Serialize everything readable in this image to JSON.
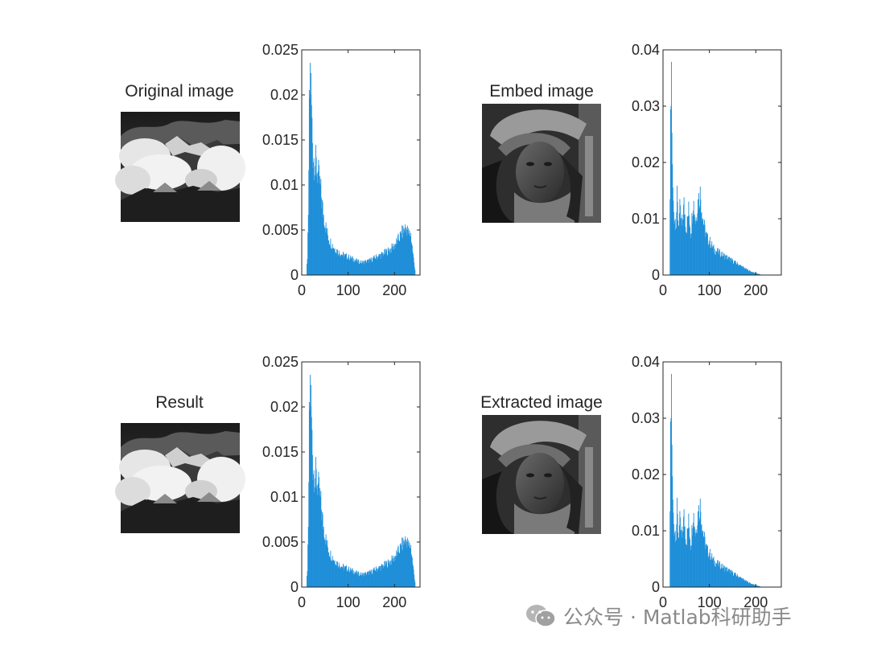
{
  "images": {
    "original": {
      "title": "Original image",
      "icon": "mountain-clouds-grayscale-photo"
    },
    "embed": {
      "title": "Embed image",
      "icon": "woman-with-hat-grayscale-photo"
    },
    "result": {
      "title": "Result",
      "icon": "mountain-clouds-grayscale-photo"
    },
    "extracted": {
      "title": "Extracted image",
      "icon": "woman-with-hat-grayscale-photo"
    }
  },
  "watermark": {
    "text": "公众号 · Matlab科研助手",
    "icon": "wechat-icon"
  },
  "colors": {
    "bar": "#1f8fd8",
    "axis": "#262626"
  },
  "chart_data": [
    {
      "id": "hist-original",
      "type": "bar",
      "title": "",
      "xlabel": "",
      "ylabel": "",
      "xlim": [
        0,
        255
      ],
      "ylim": [
        0,
        0.025
      ],
      "xticks": [
        "0",
        "100",
        "200"
      ],
      "yticks": [
        "0",
        "0.005",
        "0.01",
        "0.015",
        "0.02",
        "0.025"
      ],
      "grid": false,
      "x": [
        10,
        12,
        14,
        16,
        18,
        20,
        22,
        24,
        26,
        28,
        30,
        35,
        40,
        45,
        50,
        55,
        60,
        70,
        80,
        90,
        100,
        110,
        120,
        130,
        140,
        150,
        160,
        170,
        180,
        190,
        200,
        210,
        215,
        220,
        225,
        230,
        235,
        240,
        245
      ],
      "values": [
        0.0002,
        0.002,
        0.006,
        0.0178,
        0.0224,
        0.0205,
        0.0165,
        0.0137,
        0.013,
        0.0126,
        0.0123,
        0.0112,
        0.0097,
        0.0073,
        0.0057,
        0.0046,
        0.0038,
        0.003,
        0.0025,
        0.0022,
        0.002,
        0.0018,
        0.0015,
        0.0014,
        0.0015,
        0.0017,
        0.002,
        0.0022,
        0.0025,
        0.0028,
        0.0033,
        0.0041,
        0.0046,
        0.005,
        0.0053,
        0.0046,
        0.0045,
        0.0022,
        0.0002
      ]
    },
    {
      "id": "hist-embed",
      "type": "bar",
      "title": "",
      "xlabel": "",
      "ylabel": "",
      "xlim": [
        0,
        255
      ],
      "ylim": [
        0,
        0.04
      ],
      "xticks": [
        "0",
        "100",
        "200"
      ],
      "yticks": [
        "0",
        "0.01",
        "0.02",
        "0.03",
        "0.04"
      ],
      "grid": false,
      "x": [
        14,
        16,
        18,
        20,
        22,
        24,
        26,
        28,
        30,
        33,
        36,
        40,
        45,
        50,
        55,
        60,
        65,
        70,
        75,
        80,
        85,
        90,
        95,
        100,
        110,
        120,
        130,
        140,
        150,
        160,
        170,
        180,
        190,
        200,
        210
      ],
      "values": [
        0.002,
        0.0255,
        0.036,
        0.018,
        0.0125,
        0.0105,
        0.01,
        0.0095,
        0.0135,
        0.009,
        0.0115,
        0.0085,
        0.0125,
        0.008,
        0.0115,
        0.0075,
        0.0135,
        0.0095,
        0.013,
        0.0145,
        0.0105,
        0.008,
        0.0065,
        0.006,
        0.0045,
        0.004,
        0.0035,
        0.003,
        0.0025,
        0.002,
        0.0015,
        0.001,
        0.0006,
        0.0003,
        0.0001
      ]
    },
    {
      "id": "hist-result",
      "type": "bar",
      "title": "",
      "xlabel": "",
      "ylabel": "",
      "xlim": [
        0,
        255
      ],
      "ylim": [
        0,
        0.025
      ],
      "xticks": [
        "0",
        "100",
        "200"
      ],
      "yticks": [
        "0",
        "0.005",
        "0.01",
        "0.015",
        "0.02",
        "0.025"
      ],
      "grid": false,
      "x": [
        10,
        12,
        14,
        16,
        18,
        20,
        22,
        24,
        26,
        28,
        30,
        35,
        40,
        45,
        50,
        55,
        60,
        70,
        80,
        90,
        100,
        110,
        120,
        130,
        140,
        150,
        160,
        170,
        180,
        190,
        200,
        210,
        215,
        220,
        225,
        230,
        235,
        240,
        245
      ],
      "values": [
        0.0002,
        0.002,
        0.006,
        0.0178,
        0.0224,
        0.0205,
        0.0165,
        0.0137,
        0.013,
        0.0126,
        0.0123,
        0.0112,
        0.0097,
        0.0073,
        0.0057,
        0.0046,
        0.0038,
        0.003,
        0.0025,
        0.0022,
        0.002,
        0.0018,
        0.0015,
        0.0014,
        0.0015,
        0.0017,
        0.002,
        0.0022,
        0.0025,
        0.0028,
        0.0033,
        0.0041,
        0.0046,
        0.005,
        0.0053,
        0.0046,
        0.0045,
        0.0022,
        0.0002
      ]
    },
    {
      "id": "hist-extracted",
      "type": "bar",
      "title": "",
      "xlabel": "",
      "ylabel": "",
      "xlim": [
        0,
        255
      ],
      "ylim": [
        0,
        0.04
      ],
      "xticks": [
        "0",
        "100",
        "200"
      ],
      "yticks": [
        "0",
        "0.01",
        "0.02",
        "0.03",
        "0.04"
      ],
      "grid": false,
      "x": [
        14,
        16,
        18,
        20,
        22,
        24,
        26,
        28,
        30,
        33,
        36,
        40,
        45,
        50,
        55,
        60,
        65,
        70,
        75,
        80,
        85,
        90,
        95,
        100,
        110,
        120,
        130,
        140,
        150,
        160,
        170,
        180,
        190,
        200,
        210
      ],
      "values": [
        0.002,
        0.0255,
        0.036,
        0.018,
        0.0125,
        0.0105,
        0.01,
        0.0095,
        0.0135,
        0.009,
        0.0115,
        0.0085,
        0.0125,
        0.008,
        0.0115,
        0.0075,
        0.0135,
        0.0095,
        0.013,
        0.0145,
        0.0105,
        0.008,
        0.0065,
        0.006,
        0.0045,
        0.004,
        0.0035,
        0.003,
        0.0025,
        0.002,
        0.0015,
        0.001,
        0.0006,
        0.0003,
        0.0001
      ]
    }
  ]
}
